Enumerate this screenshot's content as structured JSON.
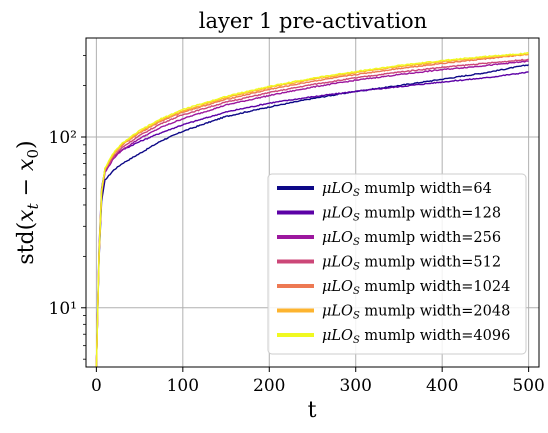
{
  "chart_data": {
    "type": "line",
    "title": "layer 1 pre-activation",
    "xlabel": "t",
    "ylabel": "std(x_t − x_0)",
    "yscale": "log",
    "xlim": [
      -12,
      512
    ],
    "ylim": [
      4.5,
      380
    ],
    "grid": true,
    "legend_position": "lower-right",
    "x_ticks": [
      0,
      100,
      200,
      300,
      400,
      500
    ],
    "x_tick_labels": [
      "0",
      "100",
      "200",
      "300",
      "400",
      "500"
    ],
    "y_ticks": [
      10,
      100
    ],
    "y_tick_labels": [
      "10¹",
      "10²"
    ],
    "legend_prefix": "μLO",
    "legend_subscript": "S",
    "series": [
      {
        "name": "mumlp width=64",
        "color": "#0d0887",
        "x": [
          0,
          3,
          6,
          10,
          20,
          30,
          50,
          75,
          100,
          150,
          200,
          250,
          300,
          350,
          400,
          450,
          500
        ],
        "y": [
          4.5,
          19,
          42,
          56,
          64,
          70,
          80,
          95,
          108,
          132,
          150,
          168,
          185,
          200,
          218,
          238,
          265
        ]
      },
      {
        "name": "mumlp width=128",
        "color": "#5c01a6",
        "x": [
          0,
          3,
          6,
          10,
          20,
          30,
          50,
          75,
          100,
          150,
          200,
          250,
          300,
          350,
          400,
          450,
          500
        ],
        "y": [
          4.5,
          22,
          50,
          65,
          77,
          84,
          94,
          106,
          118,
          140,
          158,
          172,
          185,
          197,
          210,
          222,
          240
        ]
      },
      {
        "name": "mumlp width=256",
        "color": "#9c179e",
        "x": [
          0,
          3,
          6,
          10,
          20,
          30,
          50,
          75,
          100,
          150,
          200,
          250,
          300,
          350,
          400,
          450,
          500
        ],
        "y": [
          4.5,
          20,
          46,
          62,
          75,
          84,
          98,
          114,
          128,
          154,
          175,
          196,
          215,
          232,
          248,
          262,
          278
        ]
      },
      {
        "name": "mumlp width=512",
        "color": "#cc4778",
        "x": [
          0,
          3,
          6,
          10,
          20,
          30,
          50,
          75,
          100,
          150,
          200,
          250,
          300,
          350,
          400,
          450,
          500
        ],
        "y": [
          4.5,
          20,
          47,
          64,
          77,
          87,
          102,
          120,
          135,
          160,
          182,
          203,
          222,
          240,
          256,
          270,
          285
        ]
      },
      {
        "name": "mumlp width=1024",
        "color": "#ed7953",
        "x": [
          0,
          3,
          6,
          10,
          20,
          30,
          50,
          75,
          100,
          150,
          200,
          250,
          300,
          350,
          400,
          450,
          500
        ],
        "y": [
          4.5,
          20,
          48,
          65,
          79,
          90,
          106,
          124,
          140,
          166,
          190,
          212,
          232,
          252,
          270,
          287,
          305
        ]
      },
      {
        "name": "mumlp width=2048",
        "color": "#fdb42f",
        "x": [
          0,
          3,
          6,
          10,
          20,
          30,
          50,
          75,
          100,
          150,
          200,
          250,
          300,
          350,
          400,
          450,
          500
        ],
        "y": [
          4.5,
          20,
          48,
          65,
          80,
          91,
          107,
          126,
          142,
          170,
          195,
          218,
          238,
          258,
          276,
          292,
          305
        ]
      },
      {
        "name": "mumlp width=4096",
        "color": "#f0f921",
        "x": [
          0,
          3,
          6,
          10,
          20,
          30,
          50,
          75,
          100,
          150,
          200,
          250,
          300,
          350,
          400,
          450,
          500
        ],
        "y": [
          4.5,
          20,
          48,
          66,
          81,
          92,
          109,
          128,
          145,
          173,
          198,
          221,
          242,
          262,
          280,
          296,
          310
        ]
      }
    ]
  }
}
